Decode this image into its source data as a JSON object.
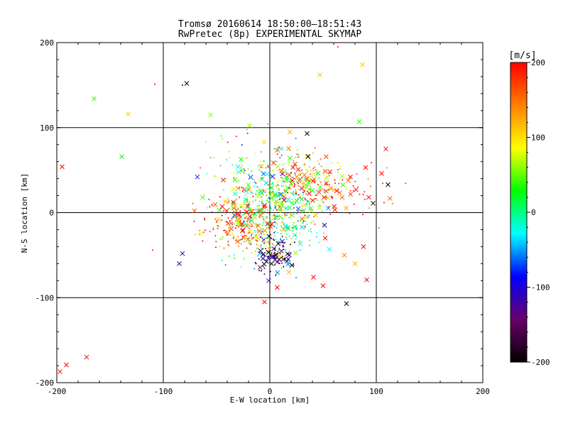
{
  "chart_data": {
    "type": "scatter",
    "title": "Tromsø 20160614 18:50:00–18:51:43",
    "subtitle": "RwPretec (8p) EXPERIMENTAL SKYMAP",
    "xlabel": "E-W location [km]",
    "ylabel": "N-S location [km]",
    "xlim": [
      -200,
      200
    ],
    "ylim": [
      -200,
      200
    ],
    "xticks": [
      "-200",
      "-100",
      "0",
      "100",
      "200"
    ],
    "yticks": [
      "-200",
      "-100",
      "0",
      "100",
      "200"
    ],
    "grid": true,
    "colorbar": {
      "label": "[m/s]",
      "range": [
        -200,
        200
      ],
      "ticks": [
        "200",
        "100",
        "0",
        "-100",
        "-200"
      ],
      "colors": [
        "#000000",
        "#6a006a",
        "#0000ff",
        "#00ffff",
        "#00ff00",
        "#ffff00",
        "#ff8000",
        "#ff0000"
      ]
    },
    "points": [
      {
        "x": -197,
        "y": -187,
        "v": 200,
        "m": "x"
      },
      {
        "x": -191,
        "y": -179,
        "v": 200,
        "m": "x"
      },
      {
        "x": -172,
        "y": -170,
        "v": 200,
        "m": "x"
      },
      {
        "x": -195,
        "y": 54,
        "v": 200,
        "m": "x"
      },
      {
        "x": -165,
        "y": 134,
        "v": 40,
        "m": "x"
      },
      {
        "x": -133,
        "y": 116,
        "v": 110,
        "m": "x"
      },
      {
        "x": -139,
        "y": 66,
        "v": 30,
        "m": "x"
      },
      {
        "x": -108,
        "y": 151,
        "v": 200,
        "m": "+"
      },
      {
        "x": -78,
        "y": 152,
        "v": -200,
        "m": "x"
      },
      {
        "x": -82,
        "y": 150,
        "v": -200,
        "m": "+"
      },
      {
        "x": 64,
        "y": 195,
        "v": 200,
        "m": "+"
      },
      {
        "x": 47,
        "y": 162,
        "v": 110,
        "m": "x"
      },
      {
        "x": 87,
        "y": 174,
        "v": 110,
        "m": "x"
      },
      {
        "x": 84,
        "y": 107,
        "v": 40,
        "m": "x"
      },
      {
        "x": 109,
        "y": 75,
        "v": 200,
        "m": "x"
      },
      {
        "x": 105,
        "y": 46,
        "v": 200,
        "m": "x"
      },
      {
        "x": 111,
        "y": 33,
        "v": -200,
        "m": "x"
      },
      {
        "x": 97,
        "y": 11,
        "v": -200,
        "m": "x"
      },
      {
        "x": 72,
        "y": -107,
        "v": -200,
        "m": "x"
      },
      {
        "x": 91,
        "y": -79,
        "v": 200,
        "m": "x"
      },
      {
        "x": -110,
        "y": -44,
        "v": 200,
        "m": "+"
      },
      {
        "x": -5,
        "y": -105,
        "v": 200,
        "m": "x"
      },
      {
        "x": 7,
        "y": -88,
        "v": 200,
        "m": "x"
      },
      {
        "x": 35,
        "y": 93,
        "v": -200,
        "m": "x"
      },
      {
        "x": 36,
        "y": 66,
        "v": -200,
        "m": "x"
      },
      {
        "x": -68,
        "y": 42,
        "v": -80,
        "m": "x"
      },
      {
        "x": -85,
        "y": -60,
        "v": -120,
        "m": "x"
      },
      {
        "x": -82,
        "y": -48,
        "v": -120,
        "m": "x"
      },
      {
        "x": -1,
        "y": -80,
        "v": -120,
        "m": "x"
      },
      {
        "x": 56,
        "y": -43,
        "v": -30,
        "m": "x"
      },
      {
        "x": -63,
        "y": 18,
        "v": 40,
        "m": "x"
      },
      {
        "x": 18,
        "y": -70,
        "v": 120,
        "m": "x"
      },
      {
        "x": 41,
        "y": -76,
        "v": 200,
        "m": "x"
      },
      {
        "x": 50,
        "y": -86,
        "v": 200,
        "m": "x"
      },
      {
        "x": 70,
        "y": -50,
        "v": 140,
        "m": "x"
      },
      {
        "x": 52,
        "y": -30,
        "v": 200,
        "m": "x"
      },
      {
        "x": 88,
        "y": -40,
        "v": 200,
        "m": "x"
      },
      {
        "x": 80,
        "y": -60,
        "v": 120,
        "m": "x"
      },
      {
        "x": 93,
        "y": 18,
        "v": 200,
        "m": "x"
      },
      {
        "x": 81,
        "y": 27,
        "v": 200,
        "m": "x"
      },
      {
        "x": 90,
        "y": 53,
        "v": 200,
        "m": "x"
      }
    ]
  }
}
